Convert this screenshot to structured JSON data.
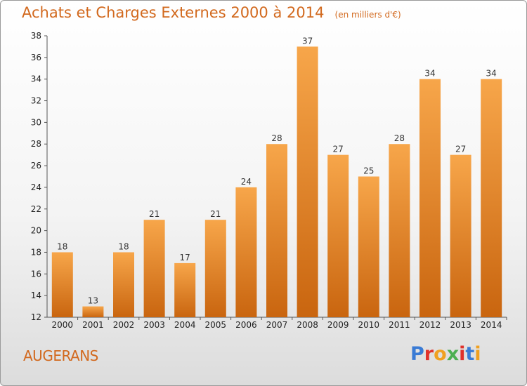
{
  "header": {
    "title": "Achats et Charges Externes 2000 à 2014",
    "subtitle": "(en milliers d'€)"
  },
  "footer": {
    "commune": "AUGERANS",
    "logo_text": "Proxiti"
  },
  "colors": {
    "bar_light": "#f7a64a",
    "bar_dark": "#c9650f",
    "title": "#d2691e",
    "logo": [
      "#3a7bd5",
      "#e0312b",
      "#f0a020",
      "#4caf50",
      "#e0312b",
      "#3a7bd5",
      "#f0a020"
    ]
  },
  "chart_data": {
    "type": "bar",
    "categories": [
      "2000",
      "2001",
      "2002",
      "2003",
      "2004",
      "2005",
      "2006",
      "2007",
      "2008",
      "2009",
      "2010",
      "2011",
      "2012",
      "2013",
      "2014"
    ],
    "values": [
      18,
      13,
      18,
      21,
      17,
      21,
      24,
      28,
      37,
      27,
      25,
      28,
      34,
      27,
      34
    ],
    "title": "Achats et Charges Externes 2000 à 2014",
    "ylim": [
      12,
      38
    ],
    "yticks": [
      12,
      14,
      16,
      18,
      20,
      22,
      24,
      26,
      28,
      30,
      32,
      34,
      36,
      38
    ],
    "grid": false,
    "legend": "none"
  }
}
